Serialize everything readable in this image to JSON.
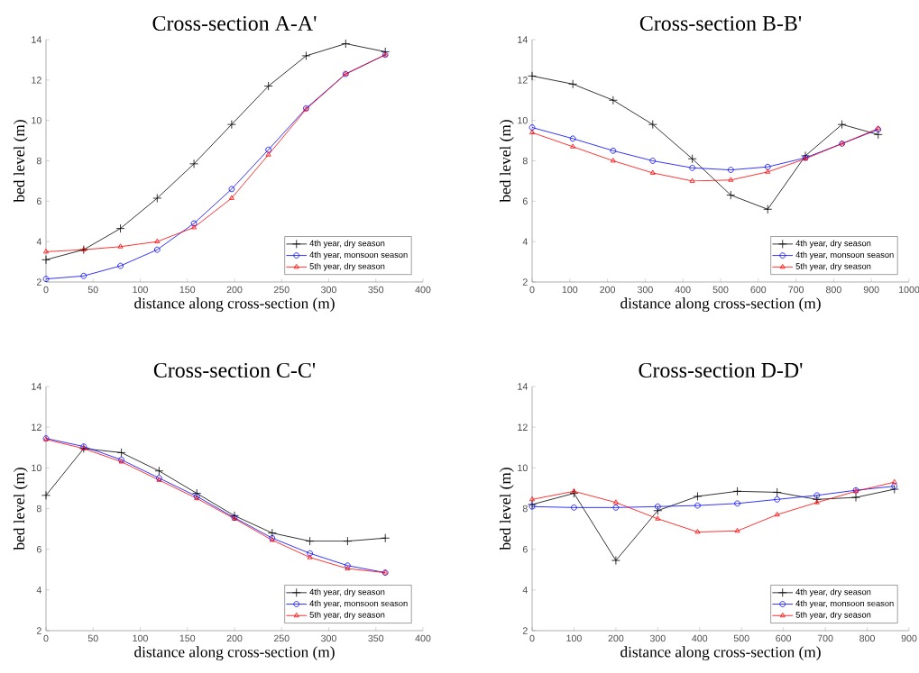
{
  "chart_data": [
    {
      "type": "line",
      "title": "Cross-section A-A'",
      "xlabel": "distance along cross-section (m)",
      "ylabel": "bed level (m)",
      "x": [
        0,
        40,
        79,
        118,
        157,
        197,
        236,
        276,
        318,
        360
      ],
      "xlim": [
        0,
        400
      ],
      "xticks": [
        0,
        50,
        100,
        150,
        200,
        250,
        300,
        350,
        400
      ],
      "ylim": [
        2,
        14
      ],
      "yticks": [
        2,
        4,
        6,
        8,
        10,
        12,
        14
      ],
      "legend": "bottom right",
      "series": [
        {
          "name": "4th year, dry season",
          "color": "#000000",
          "marker": "cross",
          "values": [
            3.1,
            3.6,
            4.65,
            6.15,
            7.85,
            9.8,
            11.7,
            13.2,
            13.8,
            13.4
          ]
        },
        {
          "name": "4th year, monsoon season",
          "color": "#0000ff",
          "marker": "circle",
          "values": [
            2.15,
            2.3,
            2.8,
            3.6,
            4.9,
            6.6,
            8.55,
            10.6,
            12.3,
            13.25
          ]
        },
        {
          "name": "5th year, dry season",
          "color": "#ff0000",
          "marker": "triangle",
          "values": [
            3.5,
            3.6,
            3.75,
            4.0,
            4.7,
            6.15,
            8.3,
            10.55,
            12.3,
            13.25
          ]
        }
      ]
    },
    {
      "type": "line",
      "title": "Cross-section B-B'",
      "xlabel": "distance along cross-section (m)",
      "ylabel": "bed level (m)",
      "x": [
        0,
        108,
        215,
        320,
        425,
        527,
        625,
        725,
        822,
        918
      ],
      "xlim": [
        0,
        1000
      ],
      "xticks": [
        0,
        100,
        200,
        300,
        400,
        500,
        600,
        700,
        800,
        900,
        1000
      ],
      "ylim": [
        2,
        14
      ],
      "yticks": [
        2,
        4,
        6,
        8,
        10,
        12,
        14
      ],
      "legend": "bottom right",
      "series": [
        {
          "name": "4th year, dry season",
          "color": "#000000",
          "marker": "cross",
          "values": [
            12.2,
            11.8,
            11.0,
            9.8,
            8.1,
            6.3,
            5.6,
            8.25,
            9.8,
            9.3
          ]
        },
        {
          "name": "4th year, monsoon season",
          "color": "#0000ff",
          "marker": "circle",
          "values": [
            9.65,
            9.1,
            8.5,
            8.0,
            7.65,
            7.55,
            7.7,
            8.15,
            8.85,
            9.55
          ]
        },
        {
          "name": "5th year, dry season",
          "color": "#ff0000",
          "marker": "triangle",
          "values": [
            9.4,
            8.7,
            8.0,
            7.4,
            7.0,
            7.05,
            7.45,
            8.1,
            8.85,
            9.6
          ]
        }
      ]
    },
    {
      "type": "line",
      "title": "Cross-section C-C'",
      "xlabel": "distance along cross-section (m)",
      "ylabel": "bed level (m)",
      "x": [
        0,
        40,
        80,
        120,
        160,
        200,
        240,
        280,
        320,
        360
      ],
      "xlim": [
        0,
        400
      ],
      "xticks": [
        0,
        50,
        100,
        150,
        200,
        250,
        300,
        350,
        400
      ],
      "ylim": [
        2,
        14
      ],
      "yticks": [
        2,
        4,
        6,
        8,
        10,
        12,
        14
      ],
      "legend": "bottom right",
      "series": [
        {
          "name": "4th year, dry season",
          "color": "#000000",
          "marker": "cross",
          "values": [
            8.65,
            10.95,
            10.75,
            9.85,
            8.75,
            7.65,
            6.8,
            6.4,
            6.4,
            6.55
          ]
        },
        {
          "name": "4th year, monsoon season",
          "color": "#0000ff",
          "marker": "circle",
          "values": [
            11.45,
            11.05,
            10.4,
            9.5,
            8.6,
            7.55,
            6.55,
            5.8,
            5.2,
            4.85
          ]
        },
        {
          "name": "5th year, dry season",
          "color": "#ff0000",
          "marker": "triangle",
          "values": [
            11.4,
            10.95,
            10.3,
            9.4,
            8.5,
            7.5,
            6.45,
            5.6,
            5.05,
            4.85
          ]
        }
      ]
    },
    {
      "type": "line",
      "title": "Cross-section D-D'",
      "xlabel": "distance along cross-section (m)",
      "ylabel": "bed level (m)",
      "x": [
        0,
        100,
        200,
        300,
        395,
        490,
        585,
        680,
        773,
        865
      ],
      "xlim": [
        0,
        900
      ],
      "xticks": [
        0,
        100,
        200,
        300,
        400,
        500,
        600,
        700,
        800,
        900
      ],
      "ylim": [
        2,
        14
      ],
      "yticks": [
        2,
        4,
        6,
        8,
        10,
        12,
        14
      ],
      "legend": "bottom right",
      "series": [
        {
          "name": "4th year, dry season",
          "color": "#000000",
          "marker": "cross",
          "values": [
            8.2,
            8.75,
            5.45,
            7.9,
            8.6,
            8.85,
            8.8,
            8.45,
            8.55,
            8.95
          ]
        },
        {
          "name": "4th year, monsoon season",
          "color": "#0000ff",
          "marker": "circle",
          "values": [
            8.1,
            8.05,
            8.05,
            8.1,
            8.15,
            8.25,
            8.45,
            8.65,
            8.9,
            9.1
          ]
        },
        {
          "name": "5th year, dry season",
          "color": "#ff0000",
          "marker": "triangle",
          "values": [
            8.45,
            8.85,
            8.3,
            7.5,
            6.85,
            6.9,
            7.7,
            8.3,
            8.85,
            9.3
          ]
        }
      ]
    }
  ]
}
